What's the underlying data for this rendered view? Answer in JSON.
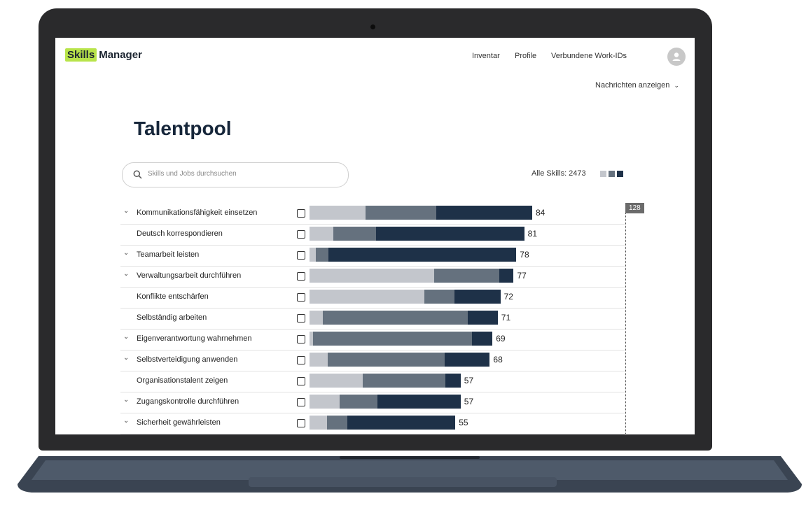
{
  "header": {
    "logo_badge": "Skills",
    "logo_text": "Manager",
    "nav": [
      "Inventar",
      "Profile",
      "Verbundene Work-IDs"
    ],
    "notifications_label": "Nachrichten anzeigen"
  },
  "main": {
    "title": "Talentpool",
    "search_placeholder": "Skills und Jobs durchsuchen",
    "all_skills_label": "Alle Skills: 2473",
    "reference_value": "128"
  },
  "colors": {
    "light": "#c3c6cc",
    "mid": "#65717e",
    "dark": "#1e3148",
    "accent": "#b8e44a"
  },
  "rows": [
    {
      "label": "Kommunikationsfähigkeit einsetzen",
      "expandable": true,
      "value": 84,
      "segments": [
        25,
        32,
        43
      ]
    },
    {
      "label": "Deutsch korrespondieren",
      "expandable": false,
      "value": 81,
      "segments": [
        11,
        20,
        69
      ]
    },
    {
      "label": "Teamarbeit leisten",
      "expandable": true,
      "value": 78,
      "segments": [
        3,
        6,
        91
      ]
    },
    {
      "label": "Verwaltungsarbeit durchführen",
      "expandable": true,
      "value": 77,
      "segments": [
        61,
        32,
        7
      ]
    },
    {
      "label": "Konflikte entschärfen",
      "expandable": false,
      "value": 72,
      "segments": [
        60,
        16,
        24
      ]
    },
    {
      "label": "Selbständig arbeiten",
      "expandable": false,
      "value": 71,
      "segments": [
        7,
        77,
        16
      ]
    },
    {
      "label": "Eigenverantwortung wahrnehmen",
      "expandable": true,
      "value": 69,
      "segments": [
        2,
        87,
        11
      ]
    },
    {
      "label": "Selbstverteidigung anwenden",
      "expandable": true,
      "value": 68,
      "segments": [
        10,
        65,
        25
      ]
    },
    {
      "label": "Organisationstalent zeigen",
      "expandable": false,
      "value": 57,
      "segments": [
        35,
        55,
        10
      ]
    },
    {
      "label": "Zugangskontrolle durchführen",
      "expandable": true,
      "value": 57,
      "segments": [
        20,
        25,
        55
      ]
    },
    {
      "label": "Sicherheit gewährleisten",
      "expandable": true,
      "value": 55,
      "segments": [
        12,
        14,
        74
      ]
    }
  ]
}
